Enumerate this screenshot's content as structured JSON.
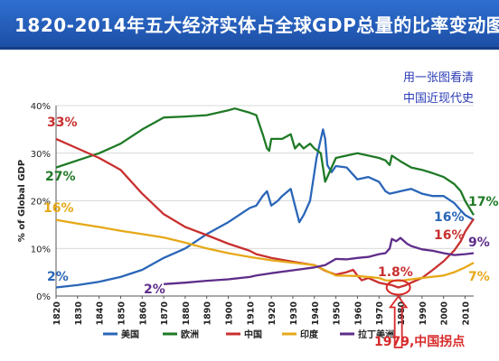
{
  "header": {
    "title": "1820-2014年五大经济实体占全球GDP总量的比率变动图"
  },
  "watermark": {
    "line1": "用一张图看清",
    "line2": "中国近现代史"
  },
  "annotation_1979": "1979,中国拐点",
  "chart_data": {
    "type": "line",
    "ylabel": "% of Global GDP",
    "xlim": [
      1820,
      2014
    ],
    "ylim": [
      0,
      40
    ],
    "x_ticks": [
      1820,
      1830,
      1840,
      1850,
      1860,
      1870,
      1880,
      1890,
      1900,
      1910,
      1920,
      1930,
      1940,
      1950,
      1960,
      1970,
      1980,
      1990,
      2000,
      2010
    ],
    "y_ticks": [
      {
        "value": 0,
        "label": "0%"
      },
      {
        "value": 10,
        "label": "10%"
      },
      {
        "value": 20,
        "label": "20%"
      },
      {
        "value": 30,
        "label": "30%"
      },
      {
        "value": 40,
        "label": "40%"
      }
    ],
    "series": [
      {
        "name": "美国",
        "color": "#2a66b8",
        "points": [
          [
            1820,
            1.8
          ],
          [
            1830,
            2.3
          ],
          [
            1840,
            3
          ],
          [
            1850,
            4
          ],
          [
            1860,
            5.5
          ],
          [
            1870,
            8
          ],
          [
            1880,
            10
          ],
          [
            1890,
            13
          ],
          [
            1900,
            15.5
          ],
          [
            1905,
            17
          ],
          [
            1910,
            18.5
          ],
          [
            1913,
            19
          ],
          [
            1916,
            21
          ],
          [
            1918,
            22
          ],
          [
            1920,
            19
          ],
          [
            1923,
            20
          ],
          [
            1925,
            21
          ],
          [
            1929,
            22.5
          ],
          [
            1931,
            19
          ],
          [
            1933,
            15.5
          ],
          [
            1935,
            17
          ],
          [
            1938,
            20
          ],
          [
            1941,
            29
          ],
          [
            1944,
            35
          ],
          [
            1945,
            33
          ],
          [
            1946,
            27.5
          ],
          [
            1948,
            26
          ],
          [
            1950,
            27.3
          ],
          [
            1955,
            27
          ],
          [
            1960,
            24.5
          ],
          [
            1965,
            25
          ],
          [
            1970,
            24
          ],
          [
            1973,
            22
          ],
          [
            1975,
            21.5
          ],
          [
            1978,
            21.8
          ],
          [
            1980,
            22
          ],
          [
            1985,
            22.5
          ],
          [
            1990,
            21.5
          ],
          [
            1995,
            21
          ],
          [
            2000,
            21
          ],
          [
            2005,
            19.5
          ],
          [
            2008,
            18
          ],
          [
            2010,
            17
          ],
          [
            2014,
            16
          ]
        ]
      },
      {
        "name": "欧洲",
        "color": "#1f7a26",
        "points": [
          [
            1820,
            27
          ],
          [
            1830,
            28.5
          ],
          [
            1840,
            30
          ],
          [
            1850,
            32
          ],
          [
            1860,
            35
          ],
          [
            1870,
            37.5
          ],
          [
            1880,
            37.7
          ],
          [
            1890,
            38
          ],
          [
            1900,
            39
          ],
          [
            1903,
            39.4
          ],
          [
            1910,
            38.5
          ],
          [
            1913,
            38
          ],
          [
            1916,
            34
          ],
          [
            1918,
            31
          ],
          [
            1919,
            30.5
          ],
          [
            1920,
            33
          ],
          [
            1925,
            33
          ],
          [
            1929,
            34
          ],
          [
            1931,
            31
          ],
          [
            1933,
            32
          ],
          [
            1935,
            31
          ],
          [
            1938,
            32
          ],
          [
            1940,
            31
          ],
          [
            1943,
            30
          ],
          [
            1945,
            24
          ],
          [
            1946,
            25
          ],
          [
            1948,
            27
          ],
          [
            1950,
            29
          ],
          [
            1955,
            29.5
          ],
          [
            1960,
            30
          ],
          [
            1965,
            29.5
          ],
          [
            1970,
            29
          ],
          [
            1973,
            28.5
          ],
          [
            1975,
            27.5
          ],
          [
            1976,
            29.5
          ],
          [
            1980,
            28.3
          ],
          [
            1985,
            27
          ],
          [
            1990,
            26.5
          ],
          [
            1995,
            25.8
          ],
          [
            2000,
            25
          ],
          [
            2005,
            23.5
          ],
          [
            2008,
            22
          ],
          [
            2010,
            20
          ],
          [
            2014,
            17
          ]
        ]
      },
      {
        "name": "中国",
        "color": "#c8302f",
        "points": [
          [
            1820,
            33
          ],
          [
            1830,
            31
          ],
          [
            1840,
            29
          ],
          [
            1850,
            26.5
          ],
          [
            1860,
            21.5
          ],
          [
            1870,
            17.2
          ],
          [
            1880,
            14.5
          ],
          [
            1890,
            12.8
          ],
          [
            1900,
            11
          ],
          [
            1910,
            9.5
          ],
          [
            1913,
            8.8
          ],
          [
            1920,
            8
          ],
          [
            1930,
            7.2
          ],
          [
            1940,
            6.5
          ],
          [
            1945,
            5.3
          ],
          [
            1950,
            4.5
          ],
          [
            1955,
            5
          ],
          [
            1958,
            5.5
          ],
          [
            1960,
            4.3
          ],
          [
            1962,
            3.3
          ],
          [
            1965,
            3.8
          ],
          [
            1968,
            3.2
          ],
          [
            1970,
            2.8
          ],
          [
            1973,
            2.5
          ],
          [
            1976,
            2.3
          ],
          [
            1979,
            1.8
          ],
          [
            1982,
            2.2
          ],
          [
            1985,
            2.8
          ],
          [
            1990,
            3.8
          ],
          [
            1995,
            5.5
          ],
          [
            2000,
            7.3
          ],
          [
            2005,
            9.6
          ],
          [
            2008,
            11.5
          ],
          [
            2010,
            13.5
          ],
          [
            2014,
            16.2
          ]
        ]
      },
      {
        "name": "印度",
        "color": "#e6a817",
        "points": [
          [
            1820,
            16
          ],
          [
            1830,
            15.2
          ],
          [
            1840,
            14.5
          ],
          [
            1850,
            13.7
          ],
          [
            1860,
            13
          ],
          [
            1870,
            12.3
          ],
          [
            1880,
            11.2
          ],
          [
            1890,
            10
          ],
          [
            1900,
            9
          ],
          [
            1910,
            8.2
          ],
          [
            1920,
            7.5
          ],
          [
            1930,
            7
          ],
          [
            1940,
            6.5
          ],
          [
            1950,
            4.3
          ],
          [
            1960,
            4.2
          ],
          [
            1970,
            3.8
          ],
          [
            1973,
            3.3
          ],
          [
            1980,
            3.2
          ],
          [
            1985,
            3.5
          ],
          [
            1990,
            3.8
          ],
          [
            2000,
            4.3
          ],
          [
            2005,
            5
          ],
          [
            2010,
            6
          ],
          [
            2014,
            7
          ]
        ]
      },
      {
        "name": "拉丁美洲",
        "color": "#5e2d8a",
        "points": [
          [
            1870,
            2.5
          ],
          [
            1880,
            2.8
          ],
          [
            1890,
            3.2
          ],
          [
            1900,
            3.5
          ],
          [
            1910,
            4
          ],
          [
            1913,
            4.3
          ],
          [
            1920,
            4.8
          ],
          [
            1930,
            5.4
          ],
          [
            1940,
            6
          ],
          [
            1945,
            6.5
          ],
          [
            1950,
            7.8
          ],
          [
            1955,
            7.7
          ],
          [
            1960,
            8
          ],
          [
            1965,
            8.2
          ],
          [
            1970,
            8.8
          ],
          [
            1973,
            9
          ],
          [
            1975,
            10
          ],
          [
            1976,
            12
          ],
          [
            1978,
            11.5
          ],
          [
            1980,
            12.2
          ],
          [
            1983,
            11
          ],
          [
            1985,
            10.5
          ],
          [
            1990,
            9.8
          ],
          [
            1995,
            9.5
          ],
          [
            2000,
            9
          ],
          [
            2005,
            8.6
          ],
          [
            2010,
            8.8
          ],
          [
            2014,
            9
          ]
        ]
      }
    ],
    "data_labels": [
      {
        "text": "33%",
        "series": "中国"
      },
      {
        "text": "27%",
        "series": "欧洲"
      },
      {
        "text": "16%",
        "series": "印度"
      },
      {
        "text": "2%",
        "series": "美国"
      },
      {
        "text": "2%",
        "series": "拉丁美洲"
      },
      {
        "text": "1.8%",
        "series": "中国"
      },
      {
        "text": "17%",
        "series": "欧洲"
      },
      {
        "text": "16%",
        "series": "美国"
      },
      {
        "text": "16%",
        "series": "中国"
      },
      {
        "text": "9%",
        "series": "拉丁美洲"
      },
      {
        "text": "7%",
        "series": "印度"
      }
    ],
    "legend_position": "bottom",
    "grid": true
  }
}
